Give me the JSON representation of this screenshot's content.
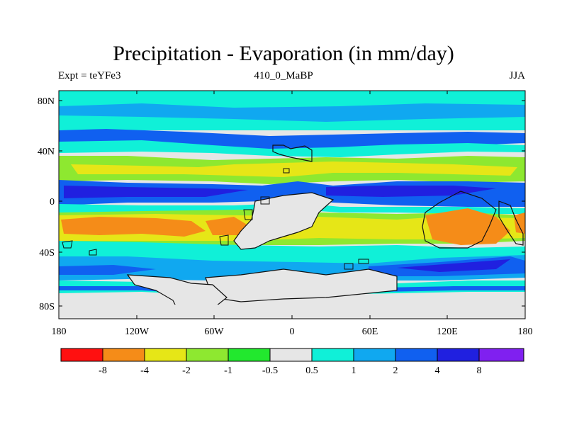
{
  "title": "Precipitation - Evaporation (in mm/day)",
  "subtitle_left": "Expt = teYFe3",
  "subtitle_center": "410_0_MaBP",
  "subtitle_right": "JJA",
  "axes": {
    "y_ticks": [
      "80N",
      "40N",
      "0",
      "40S",
      "80S"
    ],
    "x_ticks": [
      "180",
      "120W",
      "60W",
      "0",
      "60E",
      "120E",
      "180"
    ]
  },
  "colors": {
    "background": "#e6e6e6",
    "coast": "#111111",
    "neg8": "#ff1010",
    "neg4": "#f58c18",
    "neg2": "#e6e617",
    "neg1": "#8ee830",
    "neg05": "#22e82e",
    "zero": "#e6e6e6",
    "pos05": "#10f0d8",
    "pos1": "#10a8f0",
    "pos2": "#1060f0",
    "pos4": "#2020e0",
    "pos8": "#8020f0"
  },
  "legend": {
    "colors": [
      "#ff1010",
      "#f58c18",
      "#e6e617",
      "#8ee830",
      "#22e82e",
      "#e6e6e6",
      "#10f0d8",
      "#10a8f0",
      "#1060f0",
      "#2020e0",
      "#8020f0"
    ],
    "labels": [
      "-8",
      "-4",
      "-2",
      "-1",
      "-0.5",
      "0.5",
      "1",
      "2",
      "4",
      "8"
    ]
  }
}
